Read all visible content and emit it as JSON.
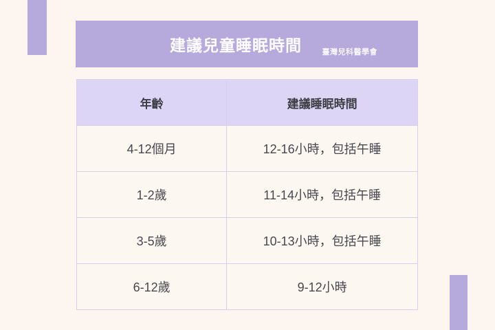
{
  "page": {
    "background_color": "#fdf6f0",
    "accent_color": "#b5aadb",
    "table_header_color": "#dcd5f5",
    "grid_line_color": "#d6cfeb"
  },
  "banner": {
    "title": "建議兒童睡眠時間",
    "subtitle": "臺灣兒科醫學會"
  },
  "table": {
    "headers": [
      "年齡",
      "建議睡眠時間"
    ],
    "rows": [
      [
        "4-12個月",
        "12-16小時，包括午睡"
      ],
      [
        "1-2歲",
        "11-14小時，包括午睡"
      ],
      [
        "3-5歲",
        "10-13小時，包括午睡"
      ],
      [
        "6-12歲",
        "9-12小時"
      ]
    ]
  },
  "chart_data": {
    "type": "table",
    "title": "建議兒童睡眠時間",
    "source": "臺灣兒科醫學會",
    "columns": [
      "年齡",
      "建議睡眠時間"
    ],
    "rows": [
      [
        "4-12個月",
        "12-16小時，包括午睡"
      ],
      [
        "1-2歲",
        "11-14小時，包括午睡"
      ],
      [
        "3-5歲",
        "10-13小時，包括午睡"
      ],
      [
        "6-12歲",
        "9-12小時"
      ]
    ]
  }
}
